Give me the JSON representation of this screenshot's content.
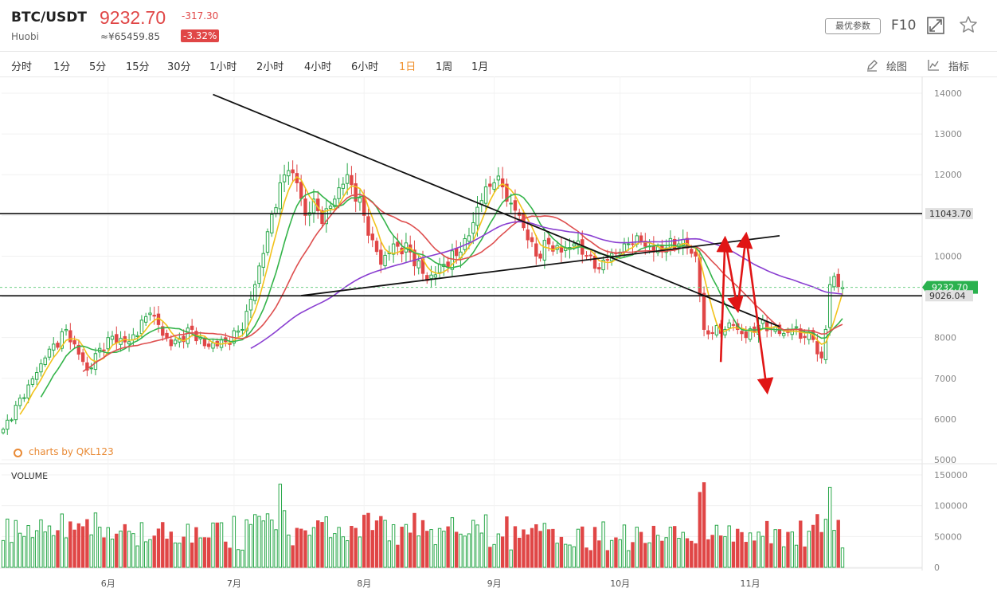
{
  "header": {
    "symbol": "BTC/USDT",
    "exchange": "Huobi",
    "price": "9232.70",
    "cny_price": "≈¥65459.85",
    "change": "-317.30",
    "change_pct": "-3.32%",
    "params_label": "最优参数",
    "f10_label": "F10"
  },
  "toolbar": {
    "timeframes": [
      "分时",
      "1分",
      "5分",
      "15分",
      "30分",
      "1小时",
      "2小时",
      "4小时",
      "6小时",
      "1日",
      "1周",
      "1月"
    ],
    "active_timeframe": "1日",
    "draw_label": "绘图",
    "indicator_label": "指标"
  },
  "watermark": "charts by QKL123",
  "colors": {
    "up": "#2aa84a",
    "down": "#e04646",
    "ma_yellow": "#f2c21b",
    "ma_green": "#34b44a",
    "ma_red": "#de4f4f",
    "ma_purple": "#8a3fd1",
    "arrow": "#e01515"
  },
  "chart_data": {
    "type": "candlestick",
    "price_axis": {
      "ticks": [
        14000,
        13000,
        12000,
        11000,
        10000,
        9000,
        8000,
        7000,
        6000,
        5000
      ],
      "ylim": [
        5000,
        14000
      ]
    },
    "volume_axis": {
      "label": "VOLUME",
      "ticks": [
        150000,
        100000,
        50000,
        0
      ],
      "ylim": [
        0,
        150000
      ]
    },
    "x_ticks": [
      "6月",
      "7月",
      "8月",
      "9月",
      "10月",
      "11月"
    ],
    "price_tags": [
      {
        "label": "11043.70",
        "value": 11043.7,
        "kind": "horizontal-line"
      },
      {
        "label": "9232.70",
        "value": 9232.7,
        "kind": "current-price"
      },
      {
        "label": "9026.04",
        "value": 9026.04,
        "kind": "horizontal-line"
      }
    ],
    "trend_lines": [
      {
        "from": {
          "date": "2019-06-26",
          "price": 13970
        },
        "to": {
          "date": "2019-11-08",
          "price": 8270
        }
      },
      {
        "from": {
          "date": "2019-07-17",
          "price": 9030
        },
        "to": {
          "date": "2019-11-08",
          "price": 10500
        }
      }
    ],
    "prediction_arrows": [
      {
        "from": {
          "date": "2019-10-25",
          "price": 7400
        },
        "to": {
          "date": "2019-10-26",
          "price": 10400
        }
      },
      {
        "from": {
          "date": "2019-10-26",
          "price": 10400
        },
        "to": {
          "date": "2019-10-29",
          "price": 8700
        }
      },
      {
        "from": {
          "date": "2019-10-29",
          "price": 8700
        },
        "to": {
          "date": "2019-10-31",
          "price": 10500
        }
      },
      {
        "from": {
          "date": "2019-10-31",
          "price": 10500
        },
        "to": {
          "date": "2019-11-05",
          "price": 6700
        }
      }
    ],
    "series_anchors": {
      "start_date": "2019-05-07",
      "close": [
        [
          0,
          5750
        ],
        [
          10,
          7500
        ],
        [
          15,
          8200
        ],
        [
          20,
          7200
        ],
        [
          25,
          8000
        ],
        [
          30,
          7900
        ],
        [
          35,
          8600
        ],
        [
          40,
          7800
        ],
        [
          45,
          8200
        ],
        [
          48,
          7800
        ],
        [
          53,
          7900
        ],
        [
          57,
          8200
        ],
        [
          60,
          9300
        ],
        [
          63,
          10600
        ],
        [
          66,
          11800
        ],
        [
          68,
          12100
        ],
        [
          70,
          11800
        ],
        [
          72,
          11000
        ],
        [
          74,
          11400
        ],
        [
          76,
          10800
        ],
        [
          79,
          11400
        ],
        [
          82,
          12000
        ],
        [
          86,
          11000
        ],
        [
          88,
          10400
        ],
        [
          90,
          9800
        ],
        [
          93,
          10300
        ],
        [
          97,
          10100
        ],
        [
          101,
          9400
        ],
        [
          105,
          9800
        ],
        [
          109,
          10100
        ],
        [
          111,
          10500
        ],
        [
          113,
          11200
        ],
        [
          115,
          11700
        ],
        [
          117,
          11800
        ],
        [
          119,
          11700
        ],
        [
          121,
          11300
        ],
        [
          123,
          11000
        ],
        [
          125,
          10400
        ],
        [
          127,
          10000
        ],
        [
          130,
          10300
        ],
        [
          133,
          10100
        ],
        [
          136,
          10300
        ],
        [
          139,
          10000
        ],
        [
          141,
          9700
        ],
        [
          144,
          9900
        ],
        [
          148,
          10300
        ],
        [
          151,
          10500
        ],
        [
          155,
          10100
        ],
        [
          158,
          10200
        ],
        [
          161,
          10300
        ],
        [
          163,
          10200
        ],
        [
          165,
          10000
        ],
        [
          167,
          8200
        ],
        [
          169,
          8100
        ],
        [
          172,
          8200
        ],
        [
          174,
          8300
        ],
        [
          177,
          8000
        ],
        [
          180,
          8300
        ],
        [
          183,
          8200
        ],
        [
          186,
          8100
        ],
        [
          188,
          8200
        ],
        [
          191,
          8000
        ],
        [
          193,
          7950
        ],
        [
          194,
          7600
        ],
        [
          195,
          7500
        ],
        [
          196,
          8200
        ],
        [
          197,
          9300
        ],
        [
          198,
          9500
        ],
        [
          199,
          9250
        ],
        [
          200,
          9232
        ]
      ]
    }
  }
}
